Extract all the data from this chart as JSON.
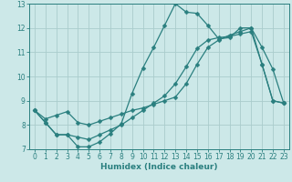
{
  "bg_color": "#cce8e8",
  "grid_color": "#aacccc",
  "line_color": "#2a7f7f",
  "xlabel": "Humidex (Indice chaleur)",
  "xlim": [
    -0.5,
    23.5
  ],
  "ylim": [
    7,
    13
  ],
  "yticks": [
    7,
    8,
    9,
    10,
    11,
    12,
    13
  ],
  "xticks": [
    0,
    1,
    2,
    3,
    4,
    5,
    6,
    7,
    8,
    9,
    10,
    11,
    12,
    13,
    14,
    15,
    16,
    17,
    18,
    19,
    20,
    21,
    22,
    23
  ],
  "line1_x": [
    0,
    1,
    2,
    3,
    4,
    5,
    6,
    7,
    8,
    9,
    10,
    11,
    12,
    13,
    14,
    15,
    16,
    17,
    18,
    19,
    20,
    21,
    22,
    23
  ],
  "line1_y": [
    8.6,
    8.1,
    7.6,
    7.6,
    7.1,
    7.1,
    7.3,
    7.65,
    8.05,
    9.3,
    10.35,
    11.2,
    12.1,
    13.0,
    12.65,
    12.6,
    12.1,
    11.55,
    11.6,
    12.0,
    12.0,
    11.2,
    10.3,
    8.9
  ],
  "line2_x": [
    0,
    1,
    2,
    3,
    4,
    5,
    6,
    7,
    8,
    9,
    10,
    11,
    12,
    13,
    14,
    15,
    16,
    17,
    18,
    19,
    20,
    21,
    22,
    23
  ],
  "line2_y": [
    8.6,
    8.25,
    8.4,
    8.55,
    8.1,
    8.0,
    8.15,
    8.3,
    8.45,
    8.6,
    8.7,
    8.85,
    9.0,
    9.15,
    9.7,
    10.5,
    11.2,
    11.5,
    11.7,
    11.85,
    12.0,
    10.5,
    9.0,
    8.9
  ],
  "line3_x": [
    0,
    1,
    2,
    3,
    4,
    5,
    6,
    7,
    8,
    9,
    10,
    11,
    12,
    13,
    14,
    15,
    16,
    17,
    18,
    19,
    20,
    21,
    22,
    23
  ],
  "line3_y": [
    8.6,
    8.1,
    7.6,
    7.6,
    7.5,
    7.4,
    7.6,
    7.8,
    8.0,
    8.3,
    8.6,
    8.9,
    9.2,
    9.7,
    10.4,
    11.15,
    11.5,
    11.6,
    11.65,
    11.75,
    11.85,
    10.5,
    9.0,
    8.9
  ],
  "marker_size": 2.5,
  "line_width": 0.9,
  "tick_fontsize": 5.5,
  "xlabel_fontsize": 6.5
}
